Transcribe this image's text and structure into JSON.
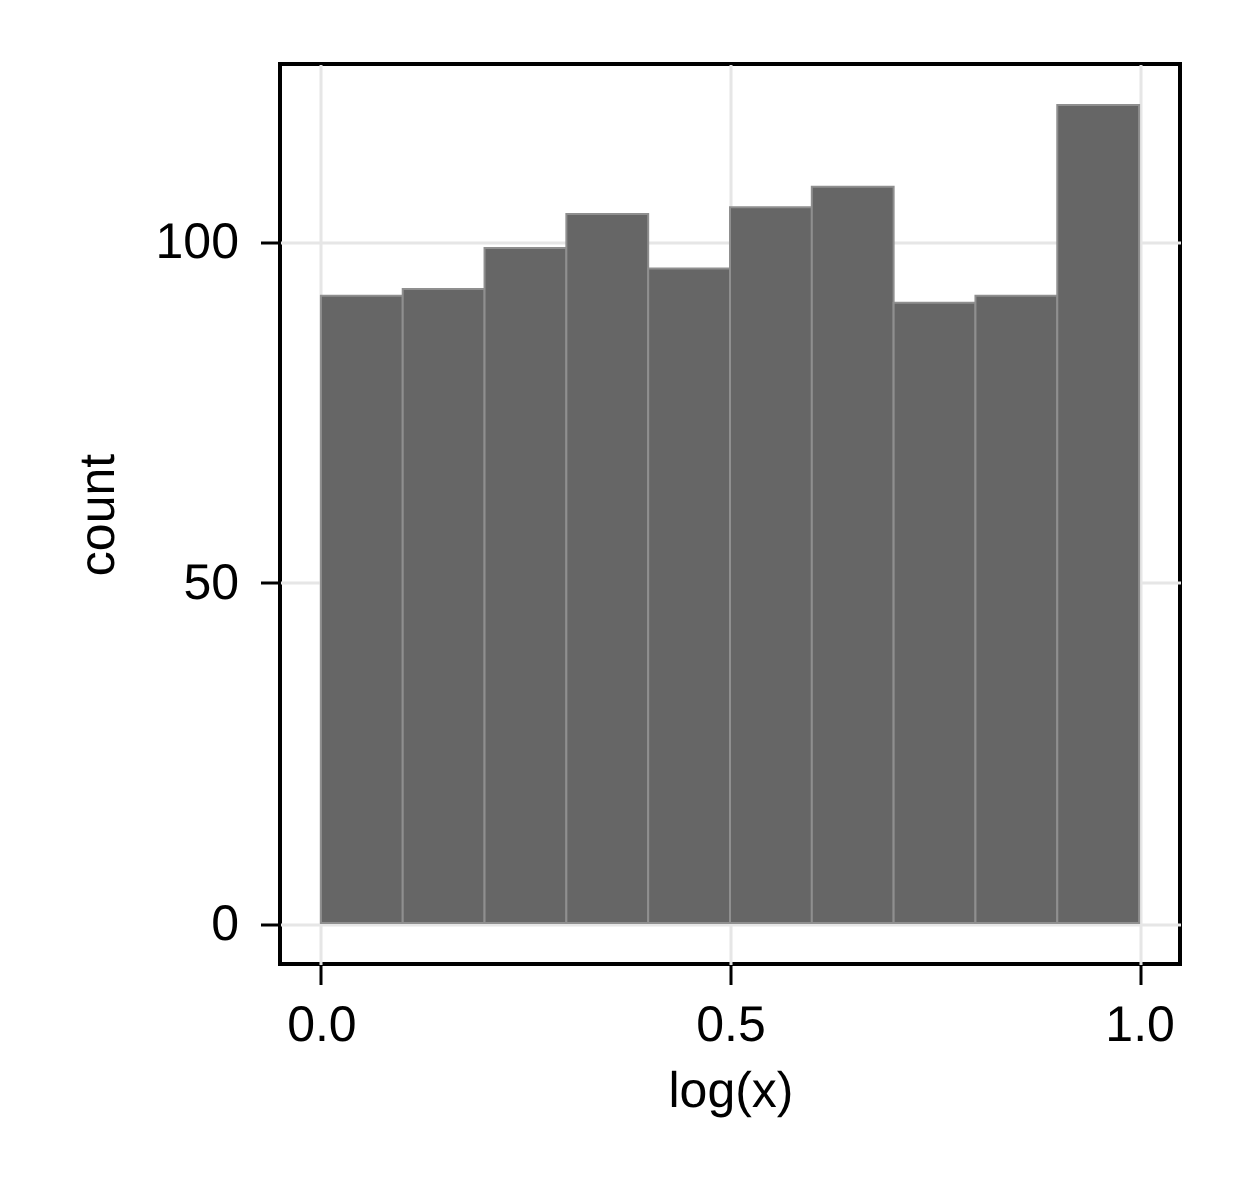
{
  "chart_data": {
    "type": "histogram",
    "xlabel": "log(x)",
    "ylabel": "count",
    "bins": [
      0,
      0.1,
      0.2,
      0.3,
      0.4,
      0.5,
      0.6,
      0.7,
      0.8,
      0.9,
      1.0
    ],
    "values": [
      92,
      93,
      99,
      104,
      96,
      105,
      108,
      91,
      92,
      120
    ],
    "color": "#666666",
    "xlim": [
      -0.05,
      1.05
    ],
    "xticks": [
      {
        "value": 0,
        "label": "0.0"
      },
      0.5,
      {
        "value": 1,
        "label": "1.0"
      }
    ],
    "ylim": [
      -6,
      126
    ],
    "yticks": [
      0,
      50,
      100
    ],
    "grid": true
  }
}
